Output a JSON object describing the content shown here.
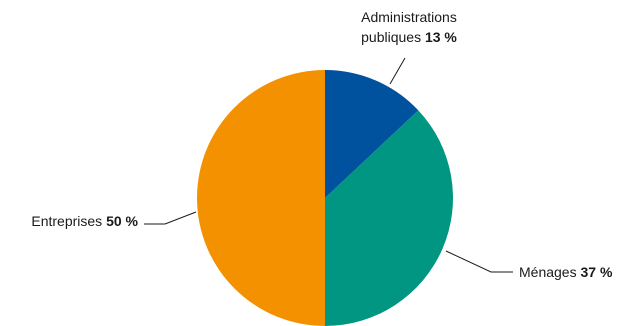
{
  "chart_data": {
    "type": "pie",
    "title": "",
    "slices": [
      {
        "label_lines": [
          "Administrations",
          "publiques"
        ],
        "value": 13,
        "value_text": "13 %",
        "color": "#00519e"
      },
      {
        "label_lines": [
          "Ménages"
        ],
        "value": 37,
        "value_text": "37 %",
        "color": "#009682"
      },
      {
        "label_lines": [
          "Entreprises"
        ],
        "value": 50,
        "value_text": "50 %",
        "color": "#f39100"
      }
    ],
    "start_angle_deg": 0,
    "direction": "clockwise",
    "legend": "none"
  }
}
